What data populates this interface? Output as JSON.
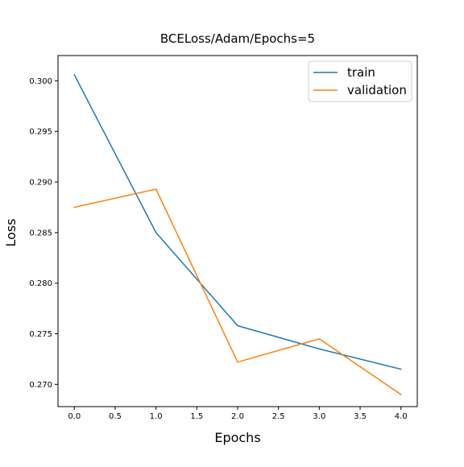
{
  "chart_data": {
    "type": "line",
    "title": "BCELoss/Adam/Epochs=5",
    "xlabel": "Epochs",
    "ylabel": "Loss",
    "x": [
      0,
      1,
      2,
      3,
      4
    ],
    "xlim": [
      -0.2,
      4.2
    ],
    "ylim": [
      0.2678,
      0.3025
    ],
    "xticks": [
      0.0,
      0.5,
      1.0,
      1.5,
      2.0,
      2.5,
      3.0,
      3.5,
      4.0
    ],
    "xtick_labels": [
      "0.0",
      "0.5",
      "1.0",
      "1.5",
      "2.0",
      "2.5",
      "3.0",
      "3.5",
      "4.0"
    ],
    "yticks": [
      0.27,
      0.275,
      0.28,
      0.285,
      0.29,
      0.295,
      0.3
    ],
    "ytick_labels": [
      "0.270",
      "0.275",
      "0.280",
      "0.285",
      "0.290",
      "0.295",
      "0.300"
    ],
    "grid": false,
    "legend_position": "top-right",
    "series": [
      {
        "name": "train",
        "color": "#1f77b4",
        "values": [
          0.3006,
          0.285,
          0.2758,
          0.2735,
          0.2715
        ]
      },
      {
        "name": "validation",
        "color": "#ff7f0e",
        "values": [
          0.2875,
          0.2893,
          0.2722,
          0.2745,
          0.269
        ]
      }
    ]
  }
}
